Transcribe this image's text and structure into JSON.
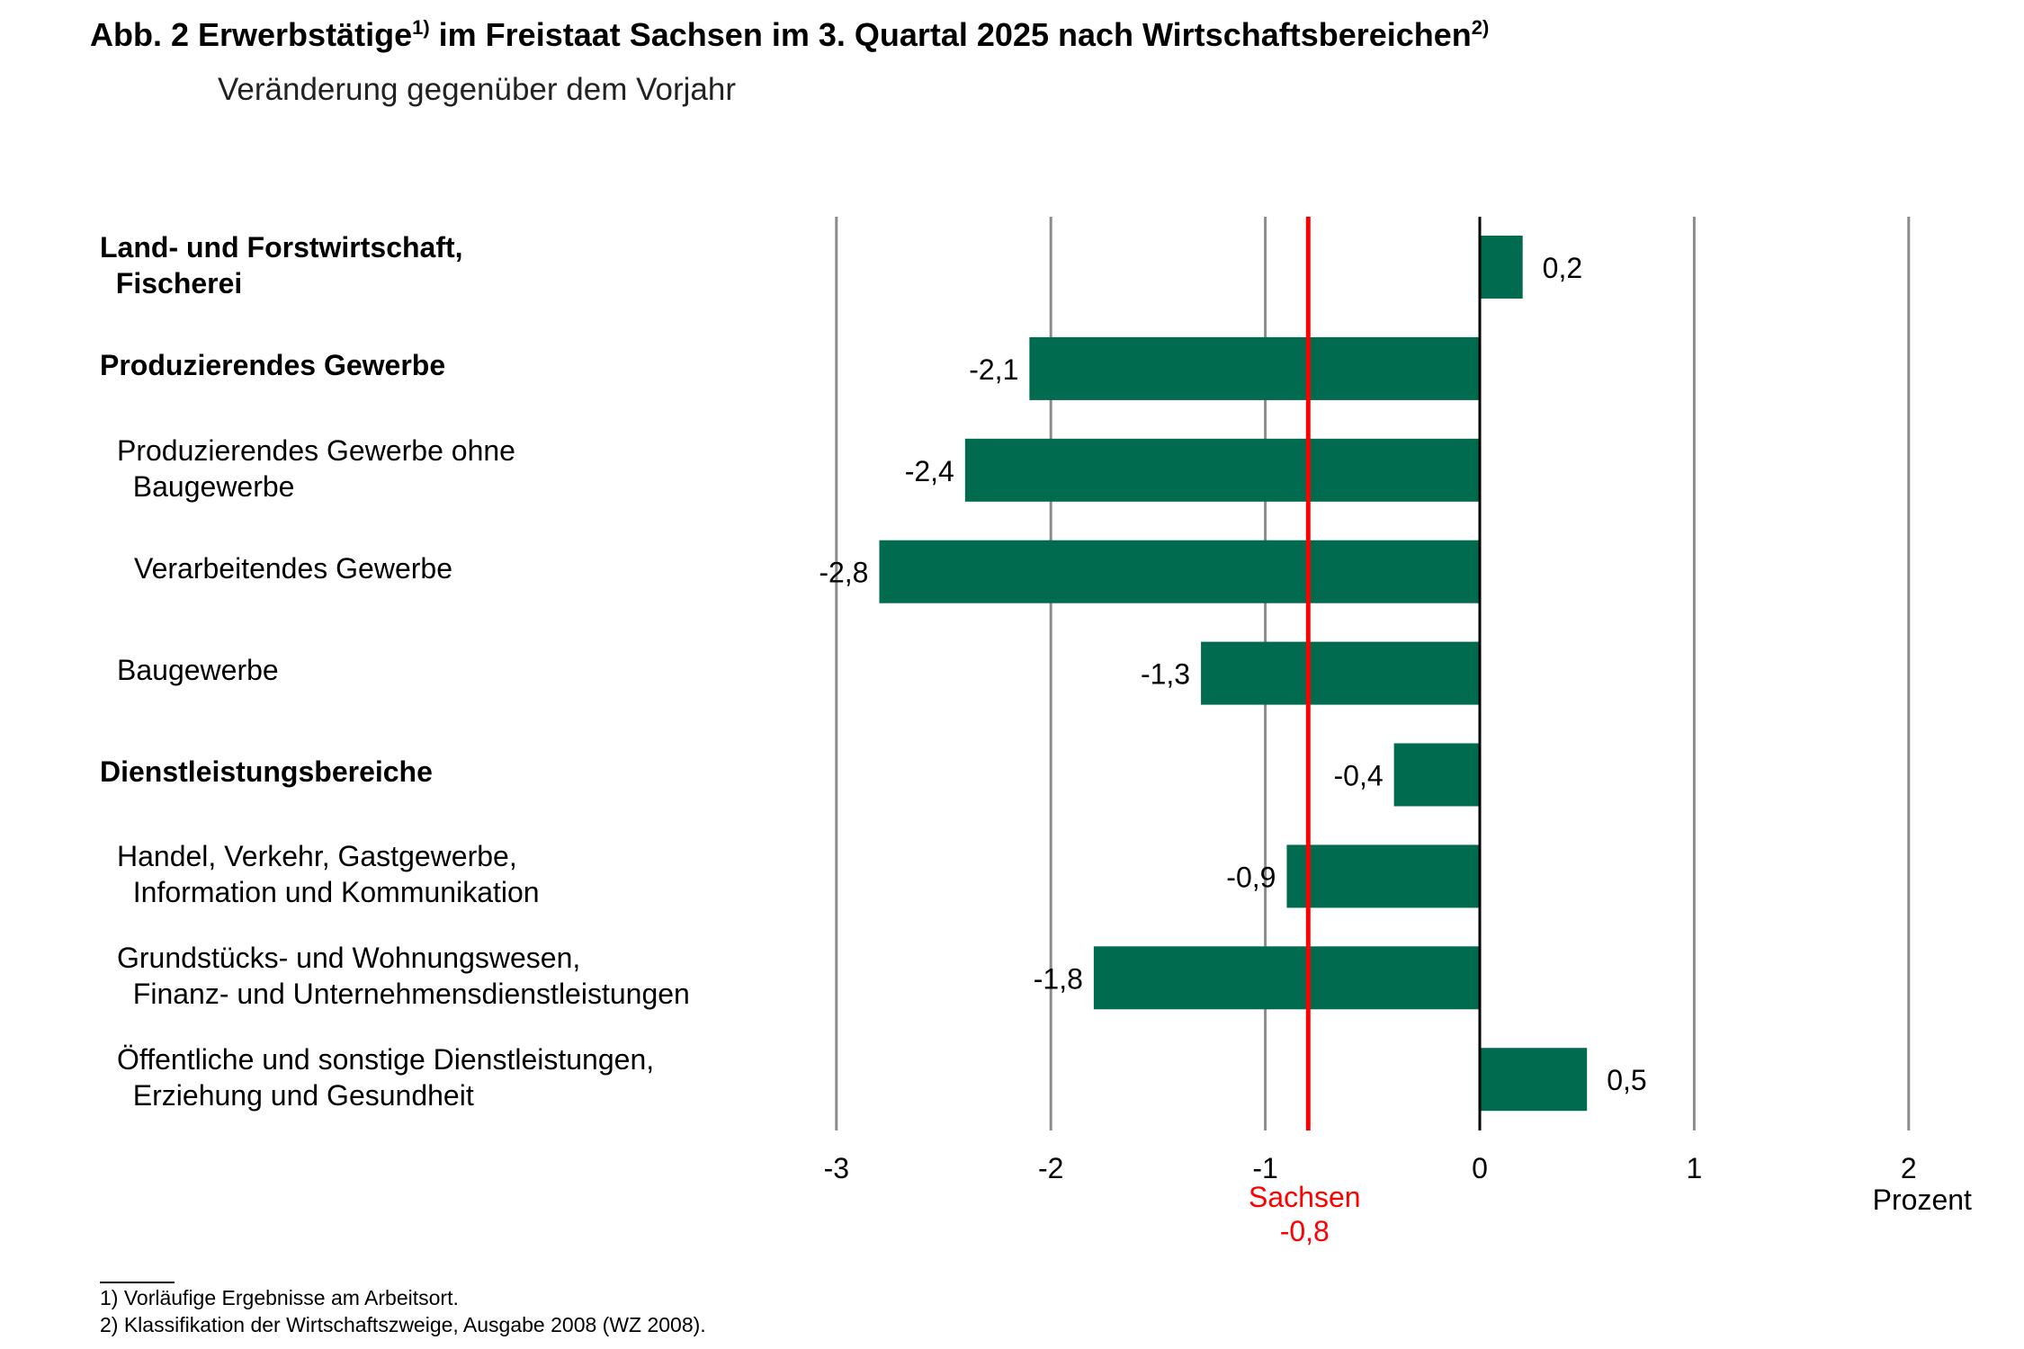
{
  "title": {
    "prefix": "Abb. 2  Erwerbstätige",
    "sup1": "1)",
    "middle": " im Freistaat Sachsen im 3. Quartal 2025 nach Wirtschaftsbereichen",
    "sup2": "2)"
  },
  "subtitle": "Veränderung gegenüber dem Vorjahr",
  "colors": {
    "bar": "#006b4e",
    "reference": "#ff0000",
    "grid": "#8c8c8c",
    "zero_axis": "#000000"
  },
  "chart_data": {
    "type": "bar",
    "orientation": "horizontal",
    "title": "Erwerbstätige im Freistaat Sachsen im 3. Quartal 2025 nach Wirtschaftsbereichen",
    "subtitle": "Veränderung gegenüber dem Vorjahr",
    "xlabel": "Prozent",
    "ylabel": "",
    "xlim": [
      -3,
      2
    ],
    "xticks": [
      -3,
      -2,
      -1,
      0,
      1,
      2
    ],
    "xtick_labels": [
      "-3",
      "-2",
      "-1",
      "0",
      "1",
      "2"
    ],
    "grid": "vertical",
    "categories": [
      {
        "label": "Land- und Forstwirtschaft,\n  Fischerei",
        "level": 0,
        "bold": true
      },
      {
        "label": "Produzierendes Gewerbe",
        "level": 0,
        "bold": true
      },
      {
        "label": "Produzierendes Gewerbe ohne\n  Baugewerbe",
        "level": 1,
        "bold": false
      },
      {
        "label": "Verarbeitendes Gewerbe",
        "level": 2,
        "bold": false
      },
      {
        "label": "Baugewerbe",
        "level": 1,
        "bold": false
      },
      {
        "label": "Dienstleistungsbereiche",
        "level": 0,
        "bold": true
      },
      {
        "label": "Handel, Verkehr, Gastgewerbe,\n  Information und Kommunikation",
        "level": 1,
        "bold": false
      },
      {
        "label": "Grundstücks- und Wohnungswesen,\n  Finanz- und Unternehmensdienstleistungen",
        "level": 1,
        "bold": false
      },
      {
        "label": "Öffentliche und sonstige Dienstleistungen,\n  Erziehung und Gesundheit",
        "level": 1,
        "bold": false
      }
    ],
    "values": [
      0.2,
      -2.1,
      -2.4,
      -2.8,
      -1.3,
      -0.4,
      -0.9,
      -1.8,
      0.5
    ],
    "value_labels": [
      "0,2",
      "-2,1",
      "-2,4",
      "-2,8",
      "-1,3",
      "-0,4",
      "-0,9",
      "-1,8",
      "0,5"
    ],
    "reference_line": {
      "name": "Sachsen",
      "value": -0.8,
      "label": "Sachsen",
      "value_label": "-0,8"
    }
  },
  "footnotes": [
    "1) Vorläufige Ergebnisse am Arbeitsort.",
    "2) Klassifikation der Wirtschaftszweige, Ausgabe 2008 (WZ 2008)."
  ]
}
